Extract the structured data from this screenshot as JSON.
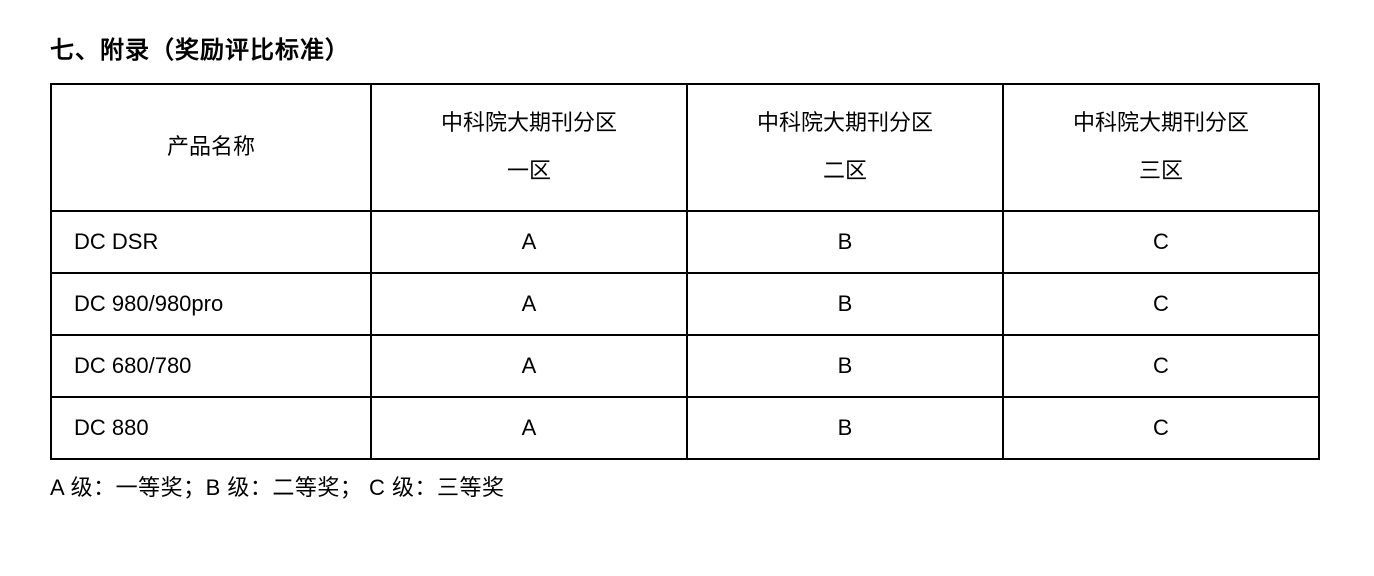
{
  "heading": "七、附录（奖励评比标准）",
  "table": {
    "headers": {
      "name": "产品名称",
      "zone1_line1": "中科院大期刊分区",
      "zone1_line2": "一区",
      "zone2_line1": "中科院大期刊分区",
      "zone2_line2": "二区",
      "zone3_line1": "中科院大期刊分区",
      "zone3_line2": "三区"
    },
    "rows": [
      {
        "name": "DC DSR",
        "z1": "A",
        "z2": "B",
        "z3": "C"
      },
      {
        "name": "DC 980/980pro",
        "z1": "A",
        "z2": "B",
        "z3": "C"
      },
      {
        "name": "DC 680/780",
        "z1": "A",
        "z2": "B",
        "z3": "C"
      },
      {
        "name": "DC 880",
        "z1": "A",
        "z2": "B",
        "z3": "C"
      }
    ]
  },
  "legend": "A 级：一等奖；B 级：二等奖； C 级：三等奖"
}
